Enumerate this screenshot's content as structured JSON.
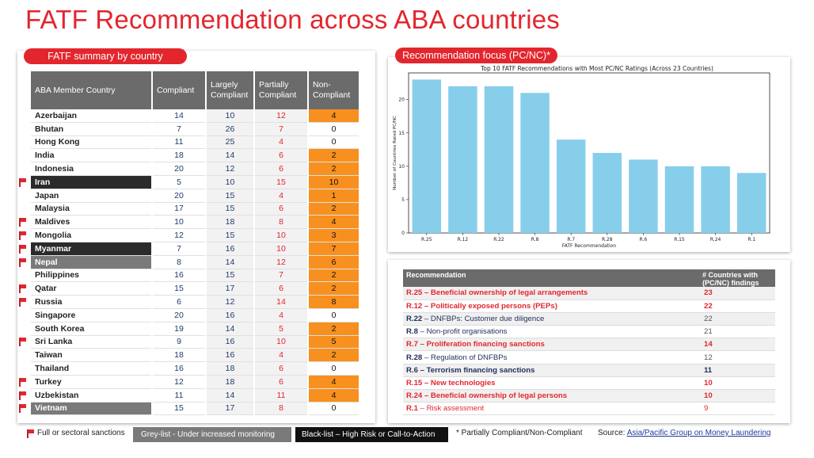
{
  "title": "FATF Recommendation across ABA countries",
  "left_panel": {
    "pill": "FATF summary by country",
    "headers": [
      "ABA Member Country",
      "Compliant",
      "Largely Compliant",
      "Partially Compliant",
      "Non-Compliant"
    ],
    "rows": [
      {
        "country": "Azerbaijan",
        "c": "14",
        "lc": "10",
        "pc": "12",
        "nc": "4",
        "nc_hi": true,
        "flag": false,
        "status": ""
      },
      {
        "country": "Bhutan",
        "c": "7",
        "lc": "26",
        "pc": "7",
        "nc": "0",
        "nc_hi": false,
        "flag": false,
        "status": ""
      },
      {
        "country": "Hong Kong",
        "c": "11",
        "lc": "25",
        "pc": "4",
        "nc": "0",
        "nc_hi": false,
        "flag": false,
        "status": ""
      },
      {
        "country": "India",
        "c": "18",
        "lc": "14",
        "pc": "6",
        "nc": "2",
        "nc_hi": true,
        "flag": false,
        "status": ""
      },
      {
        "country": "Indonesia",
        "c": "20",
        "lc": "12",
        "pc": "6",
        "nc": "2",
        "nc_hi": true,
        "flag": false,
        "status": ""
      },
      {
        "country": "Iran",
        "c": "5",
        "lc": "10",
        "pc": "15",
        "nc": "10",
        "nc_hi": true,
        "flag": true,
        "status": "black"
      },
      {
        "country": "Japan",
        "c": "20",
        "lc": "15",
        "pc": "4",
        "nc": "1",
        "nc_hi": true,
        "flag": false,
        "status": ""
      },
      {
        "country": "Malaysia",
        "c": "17",
        "lc": "15",
        "pc": "6",
        "nc": "2",
        "nc_hi": true,
        "flag": false,
        "status": ""
      },
      {
        "country": "Maldives",
        "c": "10",
        "lc": "18",
        "pc": "8",
        "nc": "4",
        "nc_hi": true,
        "flag": true,
        "status": ""
      },
      {
        "country": "Mongolia",
        "c": "12",
        "lc": "15",
        "pc": "10",
        "nc": "3",
        "nc_hi": true,
        "flag": true,
        "status": ""
      },
      {
        "country": "Myanmar",
        "c": "7",
        "lc": "16",
        "pc": "10",
        "nc": "7",
        "nc_hi": true,
        "flag": true,
        "status": "black"
      },
      {
        "country": "Nepal",
        "c": "8",
        "lc": "14",
        "pc": "12",
        "nc": "6",
        "nc_hi": true,
        "flag": true,
        "status": "grey"
      },
      {
        "country": "Philippines",
        "c": "16",
        "lc": "15",
        "pc": "7",
        "nc": "2",
        "nc_hi": true,
        "flag": false,
        "status": ""
      },
      {
        "country": "Qatar",
        "c": "15",
        "lc": "17",
        "pc": "6",
        "nc": "2",
        "nc_hi": true,
        "flag": true,
        "status": ""
      },
      {
        "country": "Russia",
        "c": "6",
        "lc": "12",
        "pc": "14",
        "nc": "8",
        "nc_hi": true,
        "flag": true,
        "status": ""
      },
      {
        "country": "Singapore",
        "c": "20",
        "lc": "16",
        "pc": "4",
        "nc": "0",
        "nc_hi": false,
        "flag": false,
        "status": ""
      },
      {
        "country": "South Korea",
        "c": "19",
        "lc": "14",
        "pc": "5",
        "nc": "2",
        "nc_hi": true,
        "flag": false,
        "status": ""
      },
      {
        "country": "Sri Lanka",
        "c": "9",
        "lc": "16",
        "pc": "10",
        "nc": "5",
        "nc_hi": true,
        "flag": true,
        "status": ""
      },
      {
        "country": "Taiwan",
        "c": "18",
        "lc": "16",
        "pc": "4",
        "nc": "2",
        "nc_hi": true,
        "flag": false,
        "status": ""
      },
      {
        "country": "Thailand",
        "c": "16",
        "lc": "18",
        "pc": "6",
        "nc": "0",
        "nc_hi": false,
        "flag": false,
        "status": ""
      },
      {
        "country": "Turkey",
        "c": "12",
        "lc": "18",
        "pc": "6",
        "nc": "4",
        "nc_hi": true,
        "flag": true,
        "status": ""
      },
      {
        "country": "Uzbekistan",
        "c": "11",
        "lc": "14",
        "pc": "11",
        "nc": "4",
        "nc_hi": true,
        "flag": true,
        "status": ""
      },
      {
        "country": "Vietnam",
        "c": "15",
        "lc": "17",
        "pc": "8",
        "nc": "0",
        "nc_hi": false,
        "flag": true,
        "status": "grey"
      }
    ]
  },
  "chart_panel": {
    "pill": "Recommendation focus (PC/NC)*"
  },
  "chart_data": {
    "type": "bar",
    "title": "Top 10 FATF Recommendations with Most PC/NC Ratings (Across 23 Countries)",
    "xlabel": "FATF Recommendation",
    "ylabel": "Number of Countries Rated PC/NC",
    "categories": [
      "R.25",
      "R.12",
      "R.22",
      "R.8",
      "R.7",
      "R.28",
      "R.6",
      "R.15",
      "R.24",
      "R.1"
    ],
    "values": [
      23,
      22,
      22,
      21,
      14,
      12,
      11,
      10,
      10,
      9
    ],
    "ylim": [
      0,
      24
    ],
    "yticks": [
      "0",
      "5",
      "10",
      "15",
      "20"
    ],
    "bar_color": "#87ceeb",
    "grid": false
  },
  "rec_table": {
    "headers": [
      "Recommendation",
      "# Countries with (PC/NC) findings"
    ],
    "rows": [
      {
        "code": "R.25",
        "text": " – Beneficial ownership of legal arrangements",
        "count": "23",
        "style": "red"
      },
      {
        "code": "R.12",
        "text": " – Politically exposed persons (PEPs)",
        "count": "22",
        "style": "red"
      },
      {
        "code": "R.22",
        "text": " – DNFBPs: Customer due diligence",
        "count": "22",
        "style": "navy"
      },
      {
        "code": "R.8",
        "text": " – Non-profit organisations",
        "count": "21",
        "style": "navy"
      },
      {
        "code": "R.7",
        "text": " – Proliferation financing sanctions",
        "count": "14",
        "style": "red"
      },
      {
        "code": "R.28",
        "text": " – Regulation of DNFBPs",
        "count": "12",
        "style": "navy"
      },
      {
        "code": "R.6",
        "text": " – Terrorism financing sanctions",
        "count": "11",
        "style": "navyb"
      },
      {
        "code": "R.15",
        "text": " – New technologies",
        "count": "10",
        "style": "red"
      },
      {
        "code": "R.24",
        "text": " – Beneficial ownership of legal persons",
        "count": "10",
        "style": "red"
      },
      {
        "code": "R.1",
        "text": " – Risk assessment",
        "count": "9",
        "style": "lred"
      }
    ]
  },
  "legend": {
    "flag_label": "Full or sectoral sanctions",
    "grey_label": "Grey-list - Under increased monitoring",
    "black_label": "Black-list – High Risk or Call-to-Action",
    "note": "* Partially Compliant/Non-Compliant",
    "source_prefix": "Source: ",
    "source_link": "Asia/Pacific Group on Money Laundering"
  },
  "colors": {
    "accent_red": "#e3262e",
    "orange": "#f7901e",
    "header_grey": "#6b6b6b",
    "navy": "#1f3a6b"
  }
}
